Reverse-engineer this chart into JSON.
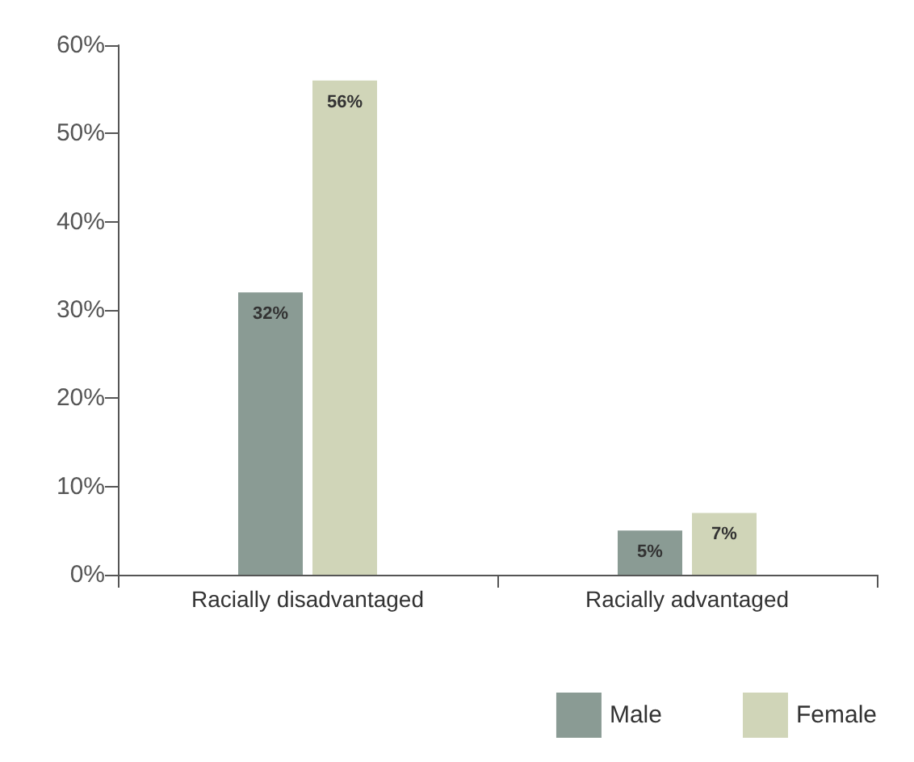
{
  "chart_data": {
    "type": "bar",
    "categories": [
      "Racially disadvantaged",
      "Racially advantaged"
    ],
    "series": [
      {
        "name": "Male",
        "color": "#8a9b94",
        "values": [
          32,
          5
        ],
        "value_labels": [
          "32%",
          "5%"
        ]
      },
      {
        "name": "Female",
        "color": "#d0d5b8",
        "values": [
          56,
          7
        ],
        "value_labels": [
          "56%",
          "7%"
        ]
      }
    ],
    "ylim": [
      0,
      60
    ],
    "yticks": [
      {
        "value": 0,
        "label": "0%"
      },
      {
        "value": 10,
        "label": "10%"
      },
      {
        "value": 20,
        "label": "20%"
      },
      {
        "value": 30,
        "label": "30%"
      },
      {
        "value": 40,
        "label": "40%"
      },
      {
        "value": 50,
        "label": "50%"
      },
      {
        "value": 60,
        "label": "60%"
      }
    ],
    "grid": false,
    "legend": "bottom right"
  }
}
